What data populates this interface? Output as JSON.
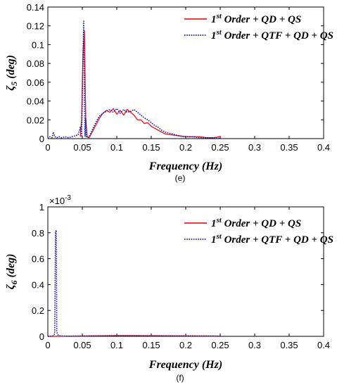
{
  "chart_data": [
    {
      "type": "line",
      "caption": "(e)",
      "xlabel": "Frequency (Hz)",
      "ylabel_symbol": "ζ",
      "ylabel_subscript": "5",
      "ylabel_unit": " (deg)",
      "xlim": [
        0,
        0.4
      ],
      "ylim": [
        0,
        0.14
      ],
      "xticks": [
        "0",
        "0.05",
        "0.1",
        "0.15",
        "0.2",
        "0.25",
        "0.3",
        "0.35",
        "0.4"
      ],
      "yticks": [
        "0",
        "0.02",
        "0.04",
        "0.06",
        "0.08",
        "0.1",
        "0.12",
        "0.14"
      ],
      "legend_position": "top-right",
      "series": [
        {
          "name": "1st Order + QD + QS",
          "legend": {
            "pre": "1",
            "sup": "st",
            "post": " Order + QD + QS"
          },
          "color": "#e8202a",
          "style": "solid",
          "x": [
            0.047,
            0.049,
            0.051,
            0.053,
            0.055,
            0.057,
            0.06,
            0.065,
            0.07,
            0.075,
            0.08,
            0.085,
            0.09,
            0.095,
            0.1,
            0.105,
            0.11,
            0.115,
            0.12,
            0.125,
            0.13,
            0.135,
            0.14,
            0.145,
            0.15,
            0.155,
            0.16,
            0.165,
            0.17,
            0.18,
            0.19,
            0.2,
            0.21,
            0.22,
            0.23,
            0.24,
            0.25
          ],
          "y": [
            0.002,
            0.02,
            0.09,
            0.115,
            0.02,
            0.002,
            0.001,
            0.008,
            0.015,
            0.022,
            0.027,
            0.03,
            0.028,
            0.032,
            0.026,
            0.03,
            0.025,
            0.031,
            0.028,
            0.025,
            0.02,
            0.02,
            0.016,
            0.017,
            0.013,
            0.011,
            0.009,
            0.007,
            0.005,
            0.004,
            0.003,
            0.002,
            0.002,
            0.002,
            0.001,
            0.001,
            0.002
          ]
        },
        {
          "name": "1st Order + QTF + QD + QS",
          "legend": {
            "pre": "1",
            "sup": "st",
            "post": " Order + QTF + QD + QS"
          },
          "color": "#1a1aa8",
          "style": "dotted",
          "x": [
            0.0,
            0.003,
            0.006,
            0.008,
            0.01,
            0.013,
            0.016,
            0.02,
            0.025,
            0.03,
            0.035,
            0.04,
            0.044,
            0.047,
            0.049,
            0.051,
            0.052,
            0.053,
            0.054,
            0.055,
            0.056,
            0.057,
            0.06,
            0.065,
            0.07,
            0.075,
            0.08,
            0.085,
            0.09,
            0.095,
            0.1,
            0.105,
            0.11,
            0.115,
            0.12,
            0.125,
            0.13,
            0.135,
            0.14,
            0.145,
            0.15,
            0.155,
            0.16,
            0.165,
            0.17,
            0.18,
            0.19,
            0.2,
            0.21,
            0.22,
            0.23,
            0.24,
            0.25
          ],
          "y": [
            0.0,
            0.002,
            0.001,
            0.007,
            0.002,
            0.001,
            0.002,
            0.001,
            0.002,
            0.001,
            0.002,
            0.003,
            0.004,
            0.012,
            0.003,
            0.09,
            0.125,
            0.06,
            0.002,
            0.022,
            0.002,
            0.001,
            0.002,
            0.01,
            0.018,
            0.024,
            0.027,
            0.029,
            0.031,
            0.028,
            0.032,
            0.027,
            0.031,
            0.028,
            0.029,
            0.031,
            0.028,
            0.025,
            0.022,
            0.02,
            0.017,
            0.014,
            0.012,
            0.009,
            0.007,
            0.005,
            0.003,
            0.002,
            0.002,
            0.001,
            0.001,
            0.001,
            0.0
          ]
        }
      ]
    },
    {
      "type": "line",
      "caption": "(f)",
      "xlabel": "Frequency (Hz)",
      "ylabel_symbol": "ζ",
      "ylabel_subscript": "6",
      "ylabel_unit": " (deg)",
      "xlim": [
        0,
        0.4
      ],
      "ylim": [
        0,
        0.001
      ],
      "y_scale_multiplier": "×10",
      "y_scale_exponent": "-3",
      "xticks": [
        "0",
        "0.05",
        "0.1",
        "0.15",
        "0.2",
        "0.25",
        "0.3",
        "0.35",
        "0.4"
      ],
      "yticks": [
        "0",
        "0.2",
        "0.4",
        "0.6",
        "0.8",
        "1"
      ],
      "legend_position": "top-right",
      "series": [
        {
          "name": "1st Order + QD + QS",
          "legend": {
            "pre": "1",
            "sup": "st",
            "post": " Order + QD + QS"
          },
          "color": "#e8202a",
          "style": "solid",
          "x": [
            0.0,
            0.02,
            0.05,
            0.1,
            0.15,
            0.2,
            0.25
          ],
          "y": [
            0.0,
            1e-06,
            3e-06,
            6e-06,
            5e-06,
            4e-06,
            2e-06
          ]
        },
        {
          "name": "1st Order + QTF + QD + QS",
          "legend": {
            "pre": "1",
            "sup": "st",
            "post": " Order + QTF + QD + QS"
          },
          "color": "#1a1aa8",
          "style": "dotted",
          "x": [
            0.0,
            0.005,
            0.008,
            0.01,
            0.011,
            0.012,
            0.013,
            0.014,
            0.016,
            0.02,
            0.03,
            0.05,
            0.1,
            0.15,
            0.2,
            0.25
          ],
          "y": [
            0.0,
            2e-06,
            5e-06,
            2e-05,
            0.0008,
            0.00082,
            4e-05,
            1.5e-05,
            5e-06,
            2e-06,
            1e-06,
            2e-06,
            5e-06,
            4e-06,
            3e-06,
            1e-06
          ]
        }
      ]
    }
  ]
}
